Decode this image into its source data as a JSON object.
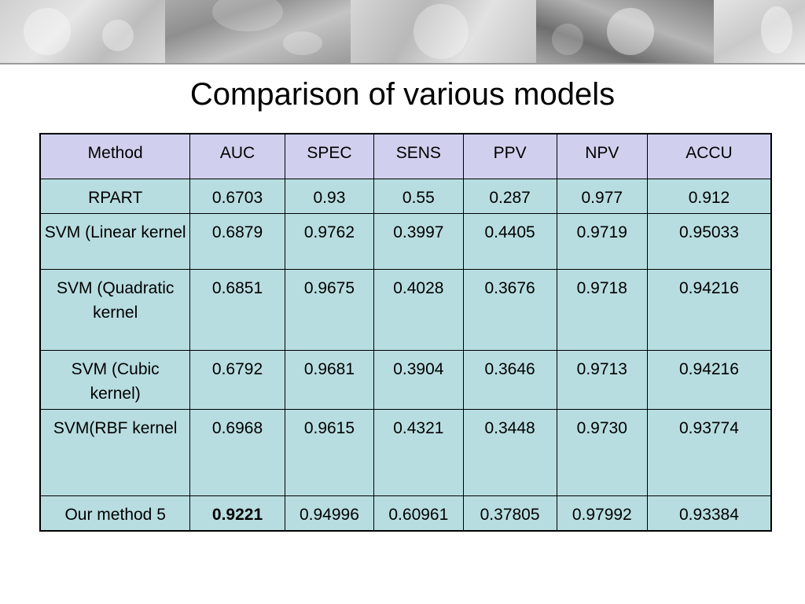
{
  "slide": {
    "title": "Comparison of various models"
  },
  "table": {
    "headers": [
      "Method",
      "AUC",
      "SPEC",
      "SENS",
      "PPV",
      "NPV",
      "ACCU"
    ],
    "rows": [
      {
        "method": "RPART",
        "auc": "0.6703",
        "spec": "0.93",
        "sens": "0.55",
        "ppv": "0.287",
        "npv": "0.977",
        "accu": "0.912"
      },
      {
        "method": "SVM (Linear kernel",
        "auc": "0.6879",
        "spec": "0.9762",
        "sens": "0.3997",
        "ppv": "0.4405",
        "npv": "0.9719",
        "accu": "0.95033"
      },
      {
        "method": "SVM (Quadratic kernel",
        "auc": "0.6851",
        "spec": "0.9675",
        "sens": "0.4028",
        "ppv": "0.3676",
        "npv": "0.9718",
        "accu": "0.94216"
      },
      {
        "method": "SVM (Cubic kernel)",
        "auc": "0.6792",
        "spec": "0.9681",
        "sens": "0.3904",
        "ppv": "0.3646",
        "npv": "0.9713",
        "accu": "0.94216"
      },
      {
        "method": "SVM(RBF kernel",
        "auc": "0.6968",
        "spec": "0.9615",
        "sens": "0.4321",
        "ppv": "0.3448",
        "npv": "0.9730",
        "accu": "0.93774"
      },
      {
        "method": "Our method 5",
        "auc": "0.9221",
        "spec": "0.94996",
        "sens": "0.60961",
        "ppv": "0.37805",
        "npv": "0.97992",
        "accu": "0.93384"
      }
    ]
  },
  "colors": {
    "header_bg": "#d0d0ee",
    "body_bg": "#b8dde0",
    "border": "#000000"
  }
}
